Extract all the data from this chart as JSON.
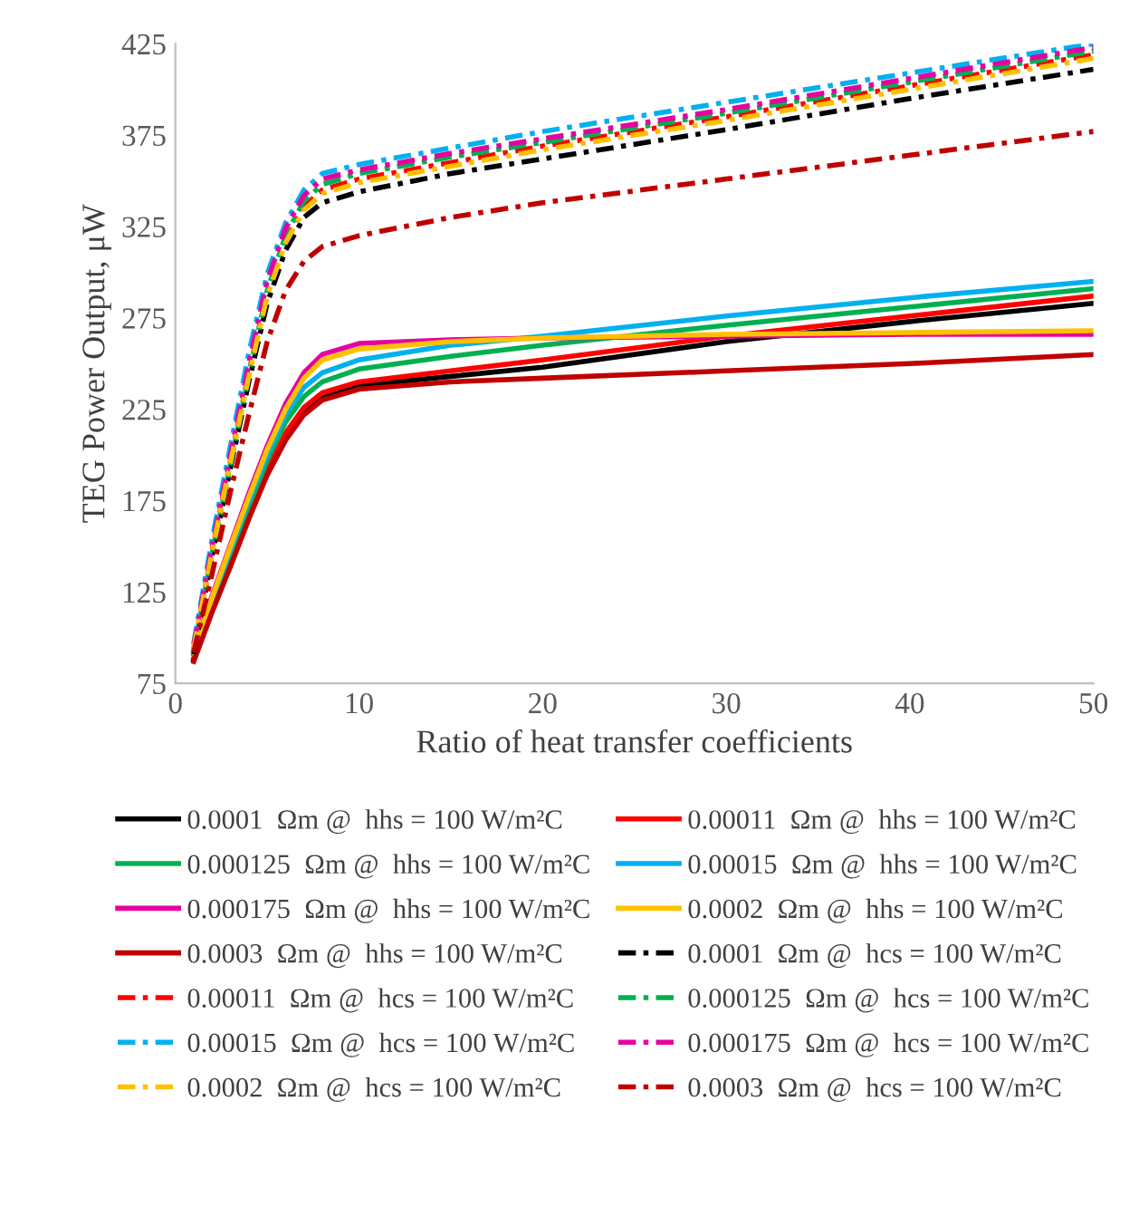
{
  "chart_data": {
    "type": "line",
    "xlabel": "Ratio of heat transfer coefficients",
    "ylabel": "TEG Power Output, μW",
    "x": [
      1,
      2,
      3,
      4,
      5,
      6,
      7,
      8,
      10,
      15,
      20,
      30,
      40,
      50
    ],
    "xlim": [
      0,
      50
    ],
    "xticks": [
      0,
      10,
      20,
      30,
      40,
      50
    ],
    "ylim": [
      75,
      425
    ],
    "yticks": [
      75,
      125,
      175,
      225,
      275,
      325,
      375,
      425
    ],
    "grid": false,
    "legend": "bottom",
    "marker": "none",
    "series": [
      {
        "name": "0.0001  Ωm @  hhs = 100 W/m²C",
        "color": "#000000",
        "line_style": "solid",
        "values": [
          88,
          115,
          140,
          166,
          190,
          210,
          224,
          232,
          238,
          243,
          248,
          262,
          273,
          283
        ]
      },
      {
        "name": "0.00011  Ωm @  hhs = 100 W/m²C",
        "color": "#ff0000",
        "line_style": "solid",
        "values": [
          89,
          116,
          142,
          168,
          192,
          212,
          226,
          234,
          240,
          246,
          252,
          265,
          276,
          287
        ]
      },
      {
        "name": "0.000125  Ωm @  hhs = 100 W/m²C",
        "color": "#00b050",
        "line_style": "solid",
        "values": [
          91,
          119,
          146,
          172,
          197,
          218,
          232,
          240,
          247,
          254,
          260,
          271,
          281,
          291
        ]
      },
      {
        "name": "0.00015  Ωm @  hhs = 100 W/m²C",
        "color": "#00b0f0",
        "line_style": "solid",
        "values": [
          92,
          121,
          148,
          175,
          200,
          222,
          237,
          245,
          252,
          260,
          265,
          276,
          286,
          295
        ]
      },
      {
        "name": "0.000175  Ωm @  hhs = 100 W/m²C",
        "color": "#e600a0",
        "line_style": "solid",
        "values": [
          93,
          123,
          151,
          179,
          205,
          228,
          245,
          255,
          261,
          263,
          264,
          265,
          266,
          266
        ]
      },
      {
        "name": "0.0002  Ωm @  hhs = 100 W/m²C",
        "color": "#ffc000",
        "line_style": "solid",
        "values": [
          92,
          122,
          150,
          177,
          203,
          225,
          242,
          252,
          258,
          262,
          264,
          266,
          267,
          268
        ]
      },
      {
        "name": "0.0003  Ωm @  hhs = 100 W/m²C",
        "color": "#c00000",
        "line_style": "solid",
        "values": [
          87,
          114,
          139,
          165,
          189,
          208,
          222,
          230,
          236,
          240,
          242,
          246,
          250,
          255
        ]
      },
      {
        "name": "0.0001  Ωm @  hcs = 100 W/m²C",
        "color": "#000000",
        "line_style": "dashed",
        "values": [
          91,
          145,
          193,
          240,
          283,
          312,
          330,
          338,
          344,
          354,
          362,
          378,
          395,
          411
        ]
      },
      {
        "name": "0.00011  Ωm @  hcs = 100 W/m²C",
        "color": "#ff0000",
        "line_style": "dashed",
        "values": [
          94,
          148,
          197,
          245,
          289,
          318,
          336,
          345,
          351,
          360,
          369,
          385,
          402,
          419
        ]
      },
      {
        "name": "0.000125  Ωm @  hcs = 100 W/m²C",
        "color": "#00b050",
        "line_style": "dashed",
        "values": [
          93,
          146,
          195,
          244,
          290,
          320,
          339,
          348,
          354,
          363,
          371,
          387,
          404,
          421
        ]
      },
      {
        "name": "0.00015  Ωm @  hcs = 100 W/m²C",
        "color": "#00b0f0",
        "line_style": "dashed",
        "values": [
          97,
          154,
          205,
          256,
          299,
          327,
          345,
          354,
          359,
          368,
          377,
          393,
          409,
          425
        ]
      },
      {
        "name": "0.000175  Ωm @  hcs = 100 W/m²C",
        "color": "#e600a0",
        "line_style": "dashed",
        "values": [
          96,
          150,
          200,
          250,
          295,
          324,
          342,
          351,
          356,
          365,
          373,
          389,
          406,
          423
        ]
      },
      {
        "name": "0.0002  Ωm @  hcs = 100 W/m²C",
        "color": "#ffc000",
        "line_style": "dashed",
        "values": [
          94,
          147,
          196,
          243,
          287,
          316,
          334,
          343,
          349,
          358,
          367,
          383,
          400,
          417
        ]
      },
      {
        "name": "0.0003  Ωm @  hcs = 100 W/m²C",
        "color": "#c00000",
        "line_style": "dashed",
        "values": [
          92,
          135,
          180,
          222,
          262,
          290,
          306,
          314,
          320,
          330,
          338,
          351,
          364,
          377
        ]
      }
    ]
  }
}
